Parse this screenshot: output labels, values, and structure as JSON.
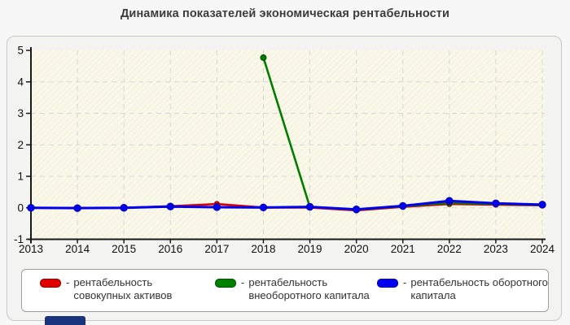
{
  "title": "Динамика показателей экономическая рентабельности",
  "legend": {
    "separator": "-",
    "items": [
      {
        "label": "рентабельность совокупных активов",
        "color": "#e00000"
      },
      {
        "label": "рентабельность внеоборотного капитала",
        "color": "#008000"
      },
      {
        "label": "рентабельность оборотного капитала",
        "color": "#0000f0"
      }
    ]
  },
  "chart_data": {
    "type": "line",
    "x": [
      2013,
      2014,
      2015,
      2016,
      2017,
      2018,
      2019,
      2020,
      2021,
      2022,
      2023,
      2024
    ],
    "series": [
      {
        "name": "рентабельность совокупных активов",
        "color": "#dd0000",
        "edge": "#990000",
        "values": [
          0,
          0,
          0,
          0.05,
          0.12,
          0.01,
          0.01,
          -0.08,
          0.03,
          0.12,
          0.1,
          0.08
        ]
      },
      {
        "name": "рентабельность внеоборотного капитала",
        "color": "#007d00",
        "edge": "#004d00",
        "values": [
          null,
          null,
          null,
          null,
          null,
          4.77,
          0.03,
          -0.06,
          0.05,
          0.16,
          0.12,
          0.09
        ]
      },
      {
        "name": "рентабельность оборотного капитала",
        "color": "#0000ee",
        "edge": "#0000aa",
        "values": [
          0,
          -0.01,
          0,
          0.04,
          0.02,
          0.01,
          0.03,
          -0.05,
          0.06,
          0.22,
          0.14,
          0.1
        ]
      }
    ],
    "ylim": [
      -1,
      5
    ],
    "yticks": [
      -1,
      0,
      1,
      2,
      3,
      4,
      5
    ],
    "grid": true,
    "legend_position": "bottom",
    "plot_background": "#f7f5e2",
    "grid_color": "#d6d6d6",
    "axis_color": "#1a1a1a"
  },
  "footer": {
    "partial_button_color": "#19337f"
  }
}
